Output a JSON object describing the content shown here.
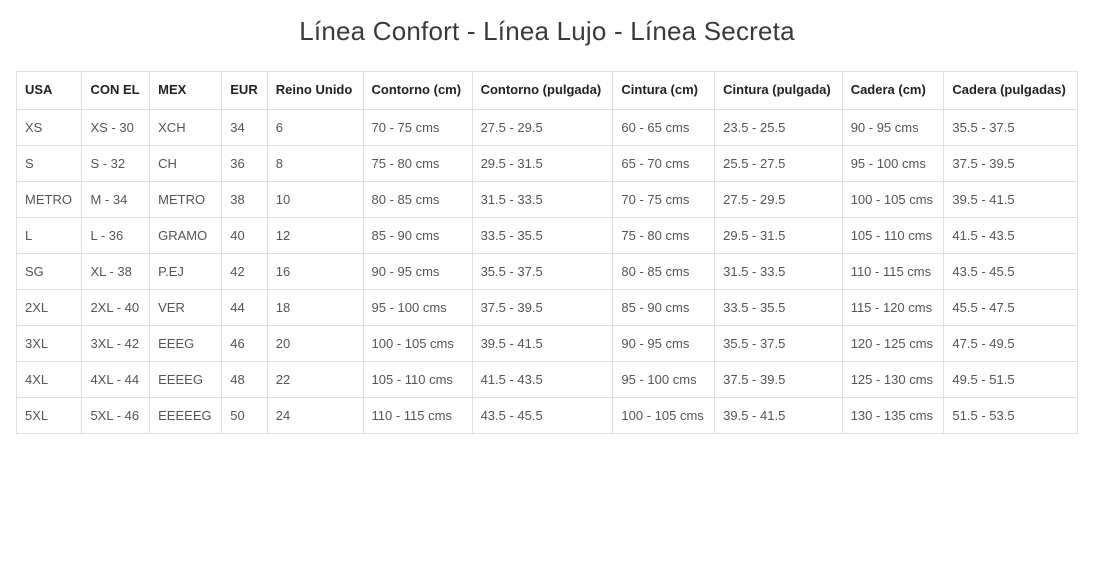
{
  "title": "Línea Confort - Línea Lujo - Línea Secreta",
  "table": {
    "columns": [
      "USA",
      "CON EL",
      "MEX",
      "EUR",
      "Reino Unido",
      "Contorno (cm)",
      "Contorno (pulgada)",
      "Cintura (cm)",
      "Cintura (pulgada)",
      "Cadera (cm)",
      "Cadera (pulgadas)"
    ],
    "rows": [
      [
        "XS",
        "XS - 30",
        "XCH",
        "34",
        "6",
        "70 - 75 cms",
        "27.5 - 29.5",
        "60 - 65 cms",
        "23.5 - 25.5",
        "90 - 95 cms",
        "35.5 - 37.5"
      ],
      [
        "S",
        "S - 32",
        "CH",
        "36",
        "8",
        "75 - 80 cms",
        "29.5 - 31.5",
        "65 - 70 cms",
        "25.5 - 27.5",
        "95 - 100 cms",
        "37.5 - 39.5"
      ],
      [
        "METRO",
        "M - 34",
        "METRO",
        "38",
        "10",
        "80 - 85 cms",
        "31.5 - 33.5",
        "70 - 75 cms",
        "27.5 - 29.5",
        "100 - 105 cms",
        "39.5 - 41.5"
      ],
      [
        "L",
        "L - 36",
        "GRAMO",
        "40",
        "12",
        "85 - 90 cms",
        "33.5 - 35.5",
        "75 - 80 cms",
        "29.5 - 31.5",
        "105 - 110 cms",
        "41.5 - 43.5"
      ],
      [
        "SG",
        "XL - 38",
        "P.EJ",
        "42",
        "16",
        "90 - 95 cms",
        "35.5 - 37.5",
        "80 - 85 cms",
        "31.5 - 33.5",
        "110 - 115 cms",
        "43.5 - 45.5"
      ],
      [
        "2XL",
        "2XL - 40",
        "VER",
        "44",
        "18",
        "95 - 100 cms",
        "37.5 - 39.5",
        "85 - 90 cms",
        "33.5 - 35.5",
        "115 - 120 cms",
        "45.5 - 47.5"
      ],
      [
        "3XL",
        "3XL - 42",
        "EEEG",
        "46",
        "20",
        "100 - 105 cms",
        "39.5 - 41.5",
        "90 - 95 cms",
        "35.5 - 37.5",
        "120 - 125 cms",
        "47.5 - 49.5"
      ],
      [
        "4XL",
        "4XL - 44",
        "EEEEG",
        "48",
        "22",
        "105 - 110 cms",
        "41.5 - 43.5",
        "95 - 100 cms",
        "37.5 - 39.5",
        "125 - 130 cms",
        "49.5 - 51.5"
      ],
      [
        "5XL",
        "5XL - 46",
        "EEEEEG",
        "50",
        "24",
        "110 - 115 cms",
        "43.5 - 45.5",
        "100 - 105 cms",
        "39.5 - 41.5",
        "130 - 135 cms",
        "51.5 - 53.5"
      ]
    ],
    "header_fontsize": 13,
    "cell_fontsize": 13,
    "border_color": "#e0e0e0",
    "header_text_color": "#222222",
    "cell_text_color": "#555555",
    "background_color": "#ffffff"
  },
  "title_fontsize": 26,
  "title_color": "#3a3a3a"
}
